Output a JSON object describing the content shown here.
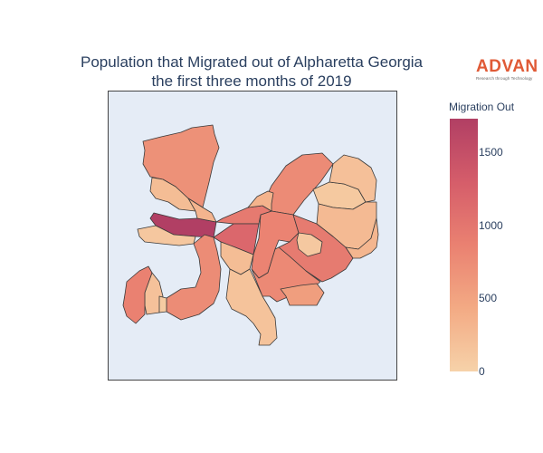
{
  "title": {
    "line1": "Population that Migrated out of Alpharetta Georgia",
    "line2": "the first three months of 2019"
  },
  "logo": {
    "word": "ADVAN",
    "tagline": "Research through Technology"
  },
  "colorbar": {
    "title": "Migration Out",
    "min": 0,
    "max": 1730,
    "ticks": [
      "0",
      "500",
      "1000",
      "1500"
    ],
    "colors": [
      "#f6d2a9",
      "#f3aa84",
      "#ea8171",
      "#d55d6a",
      "#b13f64"
    ]
  },
  "chart_data": {
    "type": "choropleth",
    "title": "Population that Migrated out of Alpharetta Georgia the first three months of 2019",
    "colorbar_title": "Migration Out",
    "value_range": [
      0,
      1730
    ],
    "regions": [
      {
        "value": 1730
      },
      {
        "value": 700
      },
      {
        "value": 230
      },
      {
        "value": 120
      },
      {
        "value": 750
      },
      {
        "value": 180
      },
      {
        "value": 80
      },
      {
        "value": 860
      },
      {
        "value": 760
      },
      {
        "value": 840
      },
      {
        "value": 940
      },
      {
        "value": 110
      },
      {
        "value": 100
      },
      {
        "value": 260
      },
      {
        "value": 190
      },
      {
        "value": 950
      },
      {
        "value": 1180
      },
      {
        "value": 230
      },
      {
        "value": 780
      },
      {
        "value": 560
      },
      {
        "value": 160
      },
      {
        "value": 340
      },
      {
        "value": 320
      },
      {
        "value": 300
      }
    ]
  }
}
